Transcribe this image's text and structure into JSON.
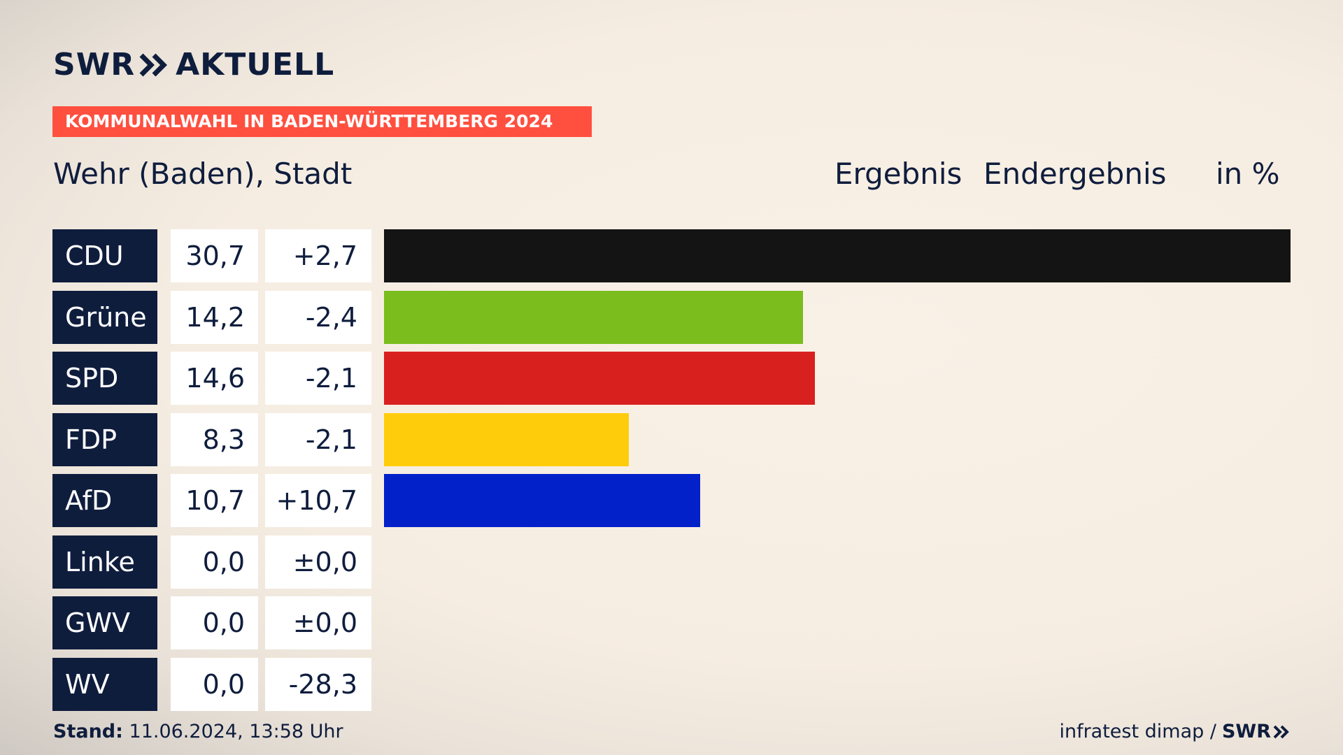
{
  "brand": {
    "logo_left": "SWR",
    "logo_right": "AKTUELL",
    "logo_icon": "double-chevron-right-icon"
  },
  "banner": {
    "text": "KOMMUNALWAHL IN BADEN-WÜRTTEMBERG 2024",
    "color": "#ff4f3f"
  },
  "header": {
    "place": "Wehr (Baden), Stadt",
    "label_result": "Ergebnis",
    "label_status": "Endergebnis",
    "label_unit": "in %"
  },
  "chart_data": {
    "type": "bar",
    "orientation": "horizontal",
    "categories": [
      "CDU",
      "Grüne",
      "SPD",
      "FDP",
      "AfD",
      "Linke",
      "GWV",
      "WV"
    ],
    "values": [
      30.7,
      14.2,
      14.6,
      8.3,
      10.7,
      0.0,
      0.0,
      0.0
    ],
    "value_labels": [
      "30,7",
      "14,2",
      "14,6",
      "8,3",
      "10,7",
      "0,0",
      "0,0",
      "0,0"
    ],
    "changes": [
      2.7,
      -2.4,
      -2.1,
      -2.1,
      10.7,
      0.0,
      0.0,
      -28.3
    ],
    "change_labels": [
      "+2,7",
      "-2,4",
      "-2,1",
      "-2,1",
      "+10,7",
      "±0,0",
      "±0,0",
      "-28,3"
    ],
    "colors": [
      "#141414",
      "#7abd1d",
      "#d8211e",
      "#ffcc0b",
      "#0221c9",
      "#be2a7a",
      "#8a8a8a",
      "#8a8a8a"
    ],
    "xlim": [
      0,
      30.7
    ],
    "unit": "%",
    "grid": false,
    "legend": "none"
  },
  "footer": {
    "stand_label": "Stand:",
    "stand_value": "11.06.2024, 13:58 Uhr",
    "source": "infratest dimap /",
    "source_brand": "SWR"
  }
}
